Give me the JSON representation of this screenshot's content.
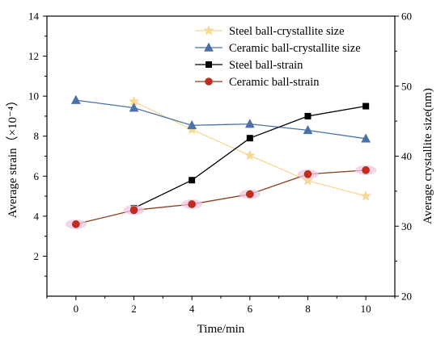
{
  "chart_data": {
    "type": "line",
    "x": [
      0,
      2,
      4,
      6,
      8,
      10
    ],
    "xlabel": "Time/min",
    "ylabel_left": "Average strain（×10⁻⁴）",
    "ylabel_right": "Average crystallite size(nm)",
    "xlim": [
      -1,
      11
    ],
    "ylim_left": [
      0,
      14
    ],
    "ylim_right": [
      20,
      60
    ],
    "x_ticks": [
      0,
      2,
      4,
      6,
      8,
      10
    ],
    "y_ticks_left": [
      2,
      4,
      6,
      8,
      10,
      12,
      14
    ],
    "y_ticks_right": [
      20,
      30,
      40,
      50,
      60
    ],
    "grid": false,
    "legend_position": "top-right",
    "series": [
      {
        "name": "Steel ball-crystallite size",
        "axis": "right",
        "marker": "star",
        "color": "#f8d894",
        "x": [
          2,
          4,
          6,
          8,
          10
        ],
        "values": [
          47.8,
          43.8,
          40.1,
          36.5,
          34.3
        ]
      },
      {
        "name": "Ceramic ball-crystallite size",
        "axis": "right",
        "marker": "triangle",
        "color": "#4a72a8",
        "x": [
          0,
          2,
          4,
          6,
          8,
          10
        ],
        "values": [
          48.0,
          46.9,
          44.4,
          44.6,
          43.7,
          42.5
        ]
      },
      {
        "name": "Steel ball-strain",
        "axis": "left",
        "marker": "square",
        "color": "#000000",
        "x": [
          2,
          4,
          6,
          8,
          10
        ],
        "values": [
          4.4,
          5.8,
          7.9,
          9.0,
          9.5
        ]
      },
      {
        "name": "Ceramic ball-strain",
        "axis": "left",
        "marker": "circle",
        "color": "#8b3a1a",
        "marker_color": "#c8281e",
        "x": [
          0,
          2,
          4,
          6,
          8,
          10
        ],
        "values": [
          3.6,
          4.3,
          4.6,
          5.1,
          6.1,
          6.3
        ]
      }
    ]
  }
}
